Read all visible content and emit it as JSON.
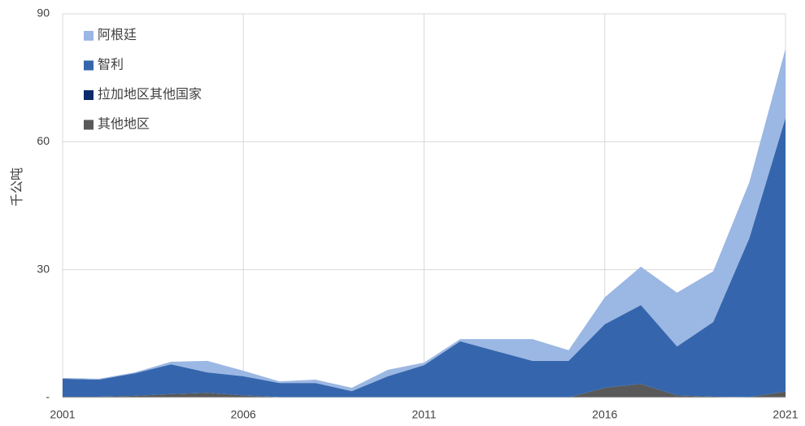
{
  "chart_data": {
    "type": "stacked_area",
    "y_label": "千公吨",
    "x": [
      2001,
      2002,
      2003,
      2004,
      2005,
      2006,
      2007,
      2008,
      2009,
      2010,
      2011,
      2012,
      2013,
      2014,
      2015,
      2016,
      2017,
      2018,
      2019,
      2020,
      2021
    ],
    "xlim": [
      2001,
      2021
    ],
    "xticks": [
      2001,
      2006,
      2011,
      2016,
      2021
    ],
    "ylim": [
      0,
      90
    ],
    "yticks": [
      {
        "value": 0,
        "label": "-"
      },
      30,
      60,
      90
    ],
    "grid": true,
    "legend": "upper left",
    "series": [
      {
        "name": "其他地区",
        "color": "#595959",
        "values": [
          0.2,
          0.2,
          0.4,
          0.8,
          1.1,
          0.5,
          0.1,
          0.1,
          0.1,
          0.1,
          0.1,
          0.1,
          0.1,
          0,
          0,
          2.3,
          3.2,
          0.5,
          0.2,
          0.1,
          1.4
        ]
      },
      {
        "name": "拉加地区其他国家",
        "color": "#0b2a6a",
        "values": [
          0,
          0,
          0,
          0,
          0,
          0,
          0,
          0,
          0,
          0,
          0,
          0,
          0,
          0,
          0,
          0,
          0,
          0,
          0,
          0,
          0
        ]
      },
      {
        "name": "智利",
        "color": "#3566ad",
        "values": [
          4.2,
          4.0,
          5.3,
          7.0,
          4.8,
          4.5,
          3.3,
          3.3,
          1.4,
          4.9,
          7.5,
          13.1,
          10.8,
          8.6,
          8.6,
          14.9,
          18.5,
          11.5,
          17.5,
          37.3,
          64.2
        ]
      },
      {
        "name": "阿根廷",
        "color": "#9bb7e3",
        "values": [
          0.2,
          0.2,
          0.2,
          0.6,
          2.7,
          1.3,
          0.4,
          0.8,
          0.8,
          1.5,
          0.6,
          0.5,
          2.8,
          5.1,
          2.5,
          6.3,
          9.0,
          12.6,
          11.9,
          13.1,
          16.2
        ]
      }
    ]
  }
}
